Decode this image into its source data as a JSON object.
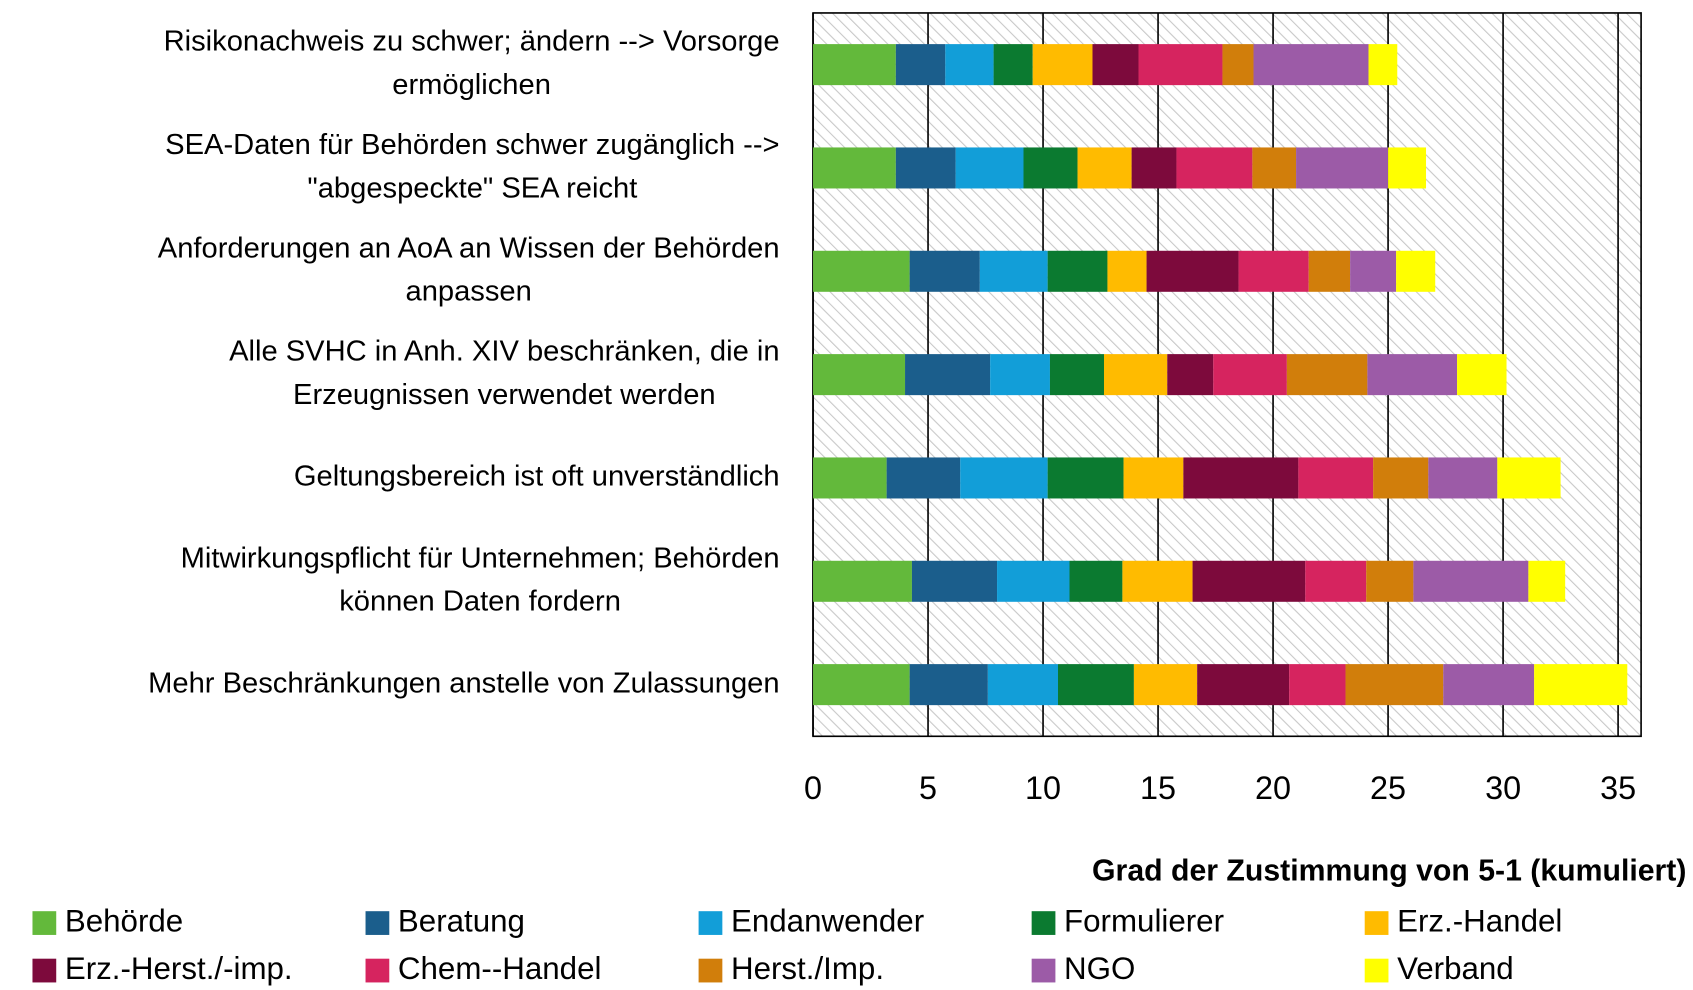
{
  "chart_data": {
    "type": "stacked_barh",
    "x_label": "Grad der Zustimmung  von 5-1 (kumuliert)",
    "categories": [
      [
        "Risikonachweis zu schwer; ändern --> Vorsorge",
        "ermöglichen"
      ],
      [
        "SEA-Daten für Behörden schwer zugänglich -->",
        "\"abgespeckte\" SEA reicht"
      ],
      [
        "Anforderungen an AoA an Wissen der Behörden",
        "anpassen"
      ],
      [
        "Alle SVHC in Anh. XIV beschränken, die in",
        "Erzeugnissen verwendet werden"
      ],
      [
        "Geltungsbereich ist oft unverständlich"
      ],
      [
        "Mitwirkungspflicht für Unternehmen; Behörden",
        "können Daten fordern"
      ],
      [
        "Mehr Beschränkungen anstelle von Zulassungen"
      ]
    ],
    "series": [
      {
        "name": "Behörde",
        "color": "#63b93b",
        "values": [
          3.6,
          3.6,
          4.2,
          4.0,
          3.2,
          4.3,
          4.2
        ]
      },
      {
        "name": "Beratung",
        "color": "#1b5e8c",
        "values": [
          2.15,
          2.6,
          3.05,
          3.7,
          3.2,
          3.7,
          3.4
        ]
      },
      {
        "name": "Endanwender",
        "color": "#129ed8",
        "values": [
          2.1,
          2.95,
          2.95,
          2.6,
          3.8,
          3.15,
          3.05
        ]
      },
      {
        "name": "Formulierer",
        "color": "#0b7a30",
        "values": [
          1.7,
          2.35,
          2.6,
          2.35,
          3.3,
          2.3,
          3.3
        ]
      },
      {
        "name": "Erz.-Handel",
        "color": "#ffbb00",
        "values": [
          2.6,
          2.35,
          1.7,
          2.75,
          2.6,
          3.05,
          2.75
        ]
      },
      {
        "name": "Erz.-Herst./-imp.",
        "color": "#7d0a3c",
        "values": [
          2.0,
          1.95,
          4.0,
          2.0,
          5.0,
          4.9,
          4.0
        ]
      },
      {
        "name": "Chem--Handel",
        "color": "#d6245f",
        "values": [
          3.65,
          3.3,
          3.05,
          3.2,
          3.25,
          2.65,
          2.45
        ]
      },
      {
        "name": "Herst./Imp.",
        "color": "#d17e0b",
        "values": [
          1.35,
          1.9,
          1.8,
          3.5,
          2.4,
          2.05,
          4.25
        ]
      },
      {
        "name": "NGO",
        "color": "#9c5ba7",
        "values": [
          5.0,
          4.0,
          2.0,
          3.9,
          3.0,
          5.0,
          3.95
        ]
      },
      {
        "name": "Verband",
        "color": "#ffff00",
        "values": [
          1.25,
          1.65,
          1.7,
          2.15,
          2.75,
          1.6,
          4.05
        ]
      }
    ],
    "xlim": [
      0,
      36
    ],
    "xticks": [
      0,
      5,
      10,
      15,
      20,
      25,
      30,
      35
    ],
    "grid": true,
    "legend": "bottom"
  }
}
